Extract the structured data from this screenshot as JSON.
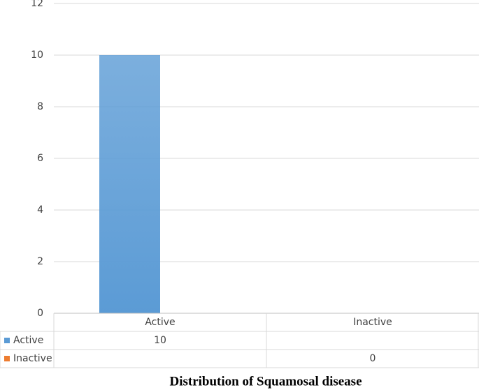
{
  "chart_data": {
    "type": "bar",
    "title": "Distribution of Squamosal disease",
    "categories": [
      "Active",
      "Inactive"
    ],
    "series": [
      {
        "name": "Active",
        "color": "#5b9bd5",
        "values": [
          10,
          null
        ]
      },
      {
        "name": "Inactive",
        "color": "#ed7d31",
        "values": [
          null,
          0
        ]
      }
    ],
    "ylim": [
      0,
      12
    ],
    "yticks": [
      0,
      2,
      4,
      6,
      8,
      10,
      12
    ],
    "grid": true,
    "data_table": true
  }
}
